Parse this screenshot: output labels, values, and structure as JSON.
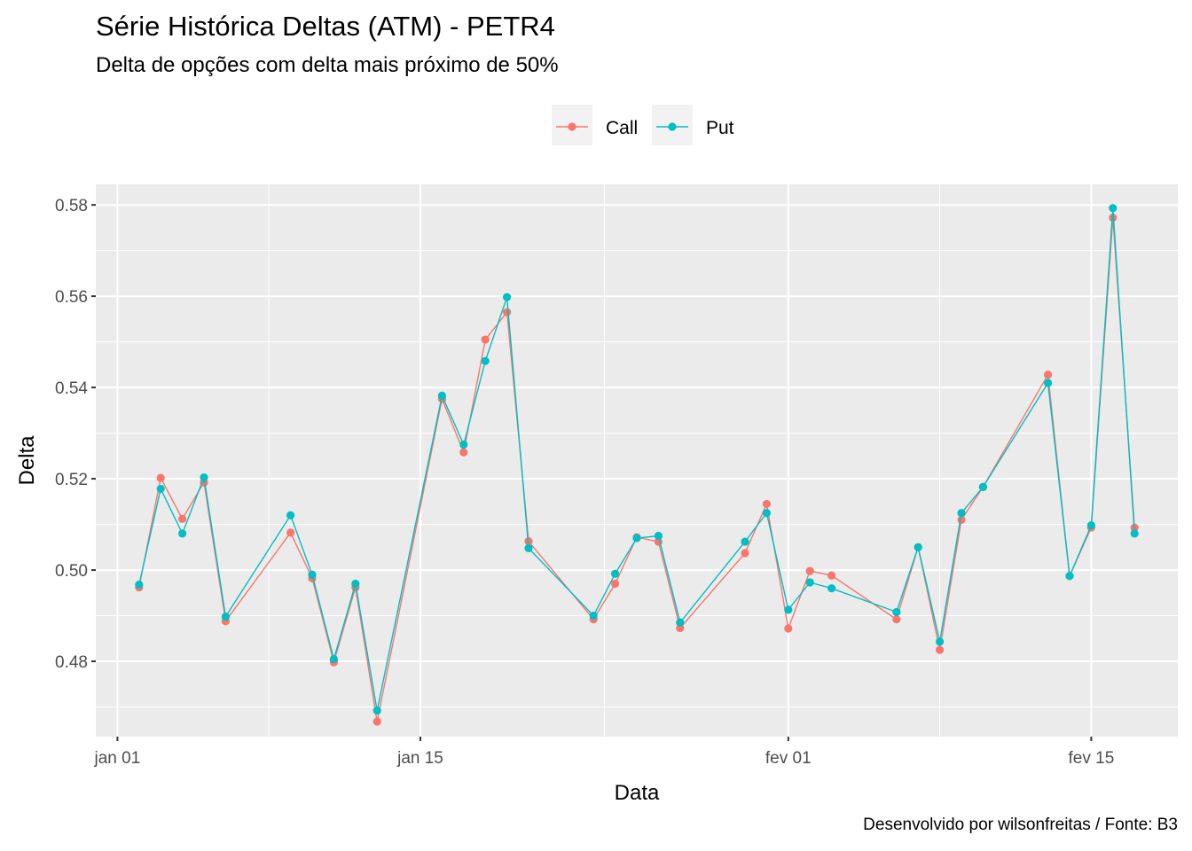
{
  "title": "Série Histórica Deltas (ATM) - PETR4",
  "subtitle": "Delta de opções com delta mais próximo de 50%",
  "caption": "Desenvolvido por wilsonfreitas / Fonte: B3",
  "colors": {
    "call": "#F8766D",
    "put": "#00BFC4",
    "panel": "#EBEBEB",
    "grid": "#FFFFFF",
    "axis_text": "#4D4D4D"
  },
  "chart_data": {
    "type": "line",
    "xlabel": "Data",
    "ylabel": "Delta",
    "x_ticks": [
      {
        "date": "2021-01-01",
        "label": "jan 01"
      },
      {
        "date": "2021-01-15",
        "label": "jan 15"
      },
      {
        "date": "2021-02-01",
        "label": "fev 01"
      },
      {
        "date": "2021-02-15",
        "label": "fev 15"
      }
    ],
    "xlim": [
      "2020-12-31",
      "2021-02-19"
    ],
    "y_ticks": [
      0.48,
      0.5,
      0.52,
      0.54,
      0.56,
      0.58
    ],
    "y_tick_labels": [
      "0.48",
      "0.50",
      "0.52",
      "0.54",
      "0.56",
      "0.58"
    ],
    "ylim": [
      0.4635,
      0.5845
    ],
    "legend": {
      "position": "top",
      "entries": [
        "Call",
        "Put"
      ]
    },
    "x": [
      "2021-01-02",
      "2021-01-03",
      "2021-01-04",
      "2021-01-05",
      "2021-01-06",
      "2021-01-09",
      "2021-01-10",
      "2021-01-11",
      "2021-01-12",
      "2021-01-13",
      "2021-01-16",
      "2021-01-17",
      "2021-01-18",
      "2021-01-19",
      "2021-01-20",
      "2021-01-23",
      "2021-01-24",
      "2021-01-25",
      "2021-01-26",
      "2021-01-27",
      "2021-01-30",
      "2021-01-31",
      "2021-02-01",
      "2021-02-02",
      "2021-02-03",
      "2021-02-06",
      "2021-02-07",
      "2021-02-08",
      "2021-02-09",
      "2021-02-10",
      "2021-02-13",
      "2021-02-14",
      "2021-02-15",
      "2021-02-16",
      "2021-02-17"
    ],
    "series": [
      {
        "name": "Call",
        "values": [
          0.4962,
          0.5202,
          0.5112,
          0.5192,
          0.4888,
          0.5082,
          0.4982,
          0.4798,
          0.4962,
          0.4668,
          0.5375,
          0.5258,
          0.5505,
          0.5565,
          0.5063,
          0.4892,
          0.497,
          0.5072,
          0.5062,
          0.4873,
          0.5037,
          0.5145,
          0.4872,
          0.4998,
          0.4988,
          0.4892,
          0.505,
          0.4825,
          0.511,
          0.5182,
          0.5428,
          0.4987,
          0.5093,
          0.5772,
          0.5093
        ]
      },
      {
        "name": "Put",
        "values": [
          0.4968,
          0.5178,
          0.508,
          0.5203,
          0.4898,
          0.512,
          0.499,
          0.4805,
          0.497,
          0.4692,
          0.5382,
          0.5275,
          0.5458,
          0.5598,
          0.5048,
          0.49,
          0.4992,
          0.507,
          0.5075,
          0.4885,
          0.5062,
          0.5125,
          0.4913,
          0.4973,
          0.496,
          0.4908,
          0.505,
          0.4843,
          0.5125,
          0.5182,
          0.541,
          0.4987,
          0.5098,
          0.5793,
          0.508
        ]
      }
    ]
  }
}
